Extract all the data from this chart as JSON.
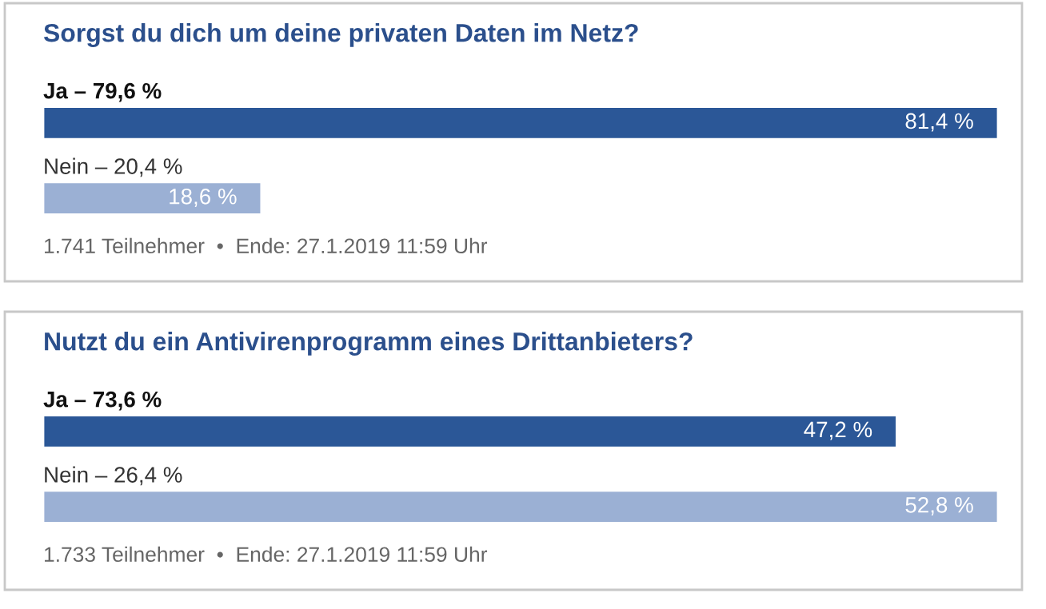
{
  "chart_data": [
    {
      "type": "bar",
      "orientation": "horizontal",
      "title": "Sorgst du dich um deine privaten Daten im Netz?",
      "categories": [
        "Ja – 79,6 %",
        "Nein – 20,4 %"
      ],
      "values": [
        81.4,
        18.6
      ],
      "colors": [
        "#2b5797",
        "#9bb0d4"
      ],
      "value_labels": [
        "81,4 %",
        "18,6 %"
      ],
      "annotations": [
        "1.741 Teilnehmer  •  Ende: 27.1.2019 11:59 Uhr"
      ],
      "tick_labels": false,
      "legend": false
    },
    {
      "type": "bar",
      "orientation": "horizontal",
      "title": "Nutzt du ein Antivirenprogramm eines Drittanbieters?",
      "categories": [
        "Ja – 73,6 %",
        "Nein – 26,4 %"
      ],
      "values": [
        47.2,
        52.8
      ],
      "colors": [
        "#2b5797",
        "#9bb0d4"
      ],
      "value_labels": [
        "47,2 %",
        "52,8 %"
      ],
      "annotations": [
        "1.733 Teilnehmer  •  Ende: 27.1.2019 11:59 Uhr"
      ],
      "tick_labels": false,
      "legend": false
    }
  ]
}
